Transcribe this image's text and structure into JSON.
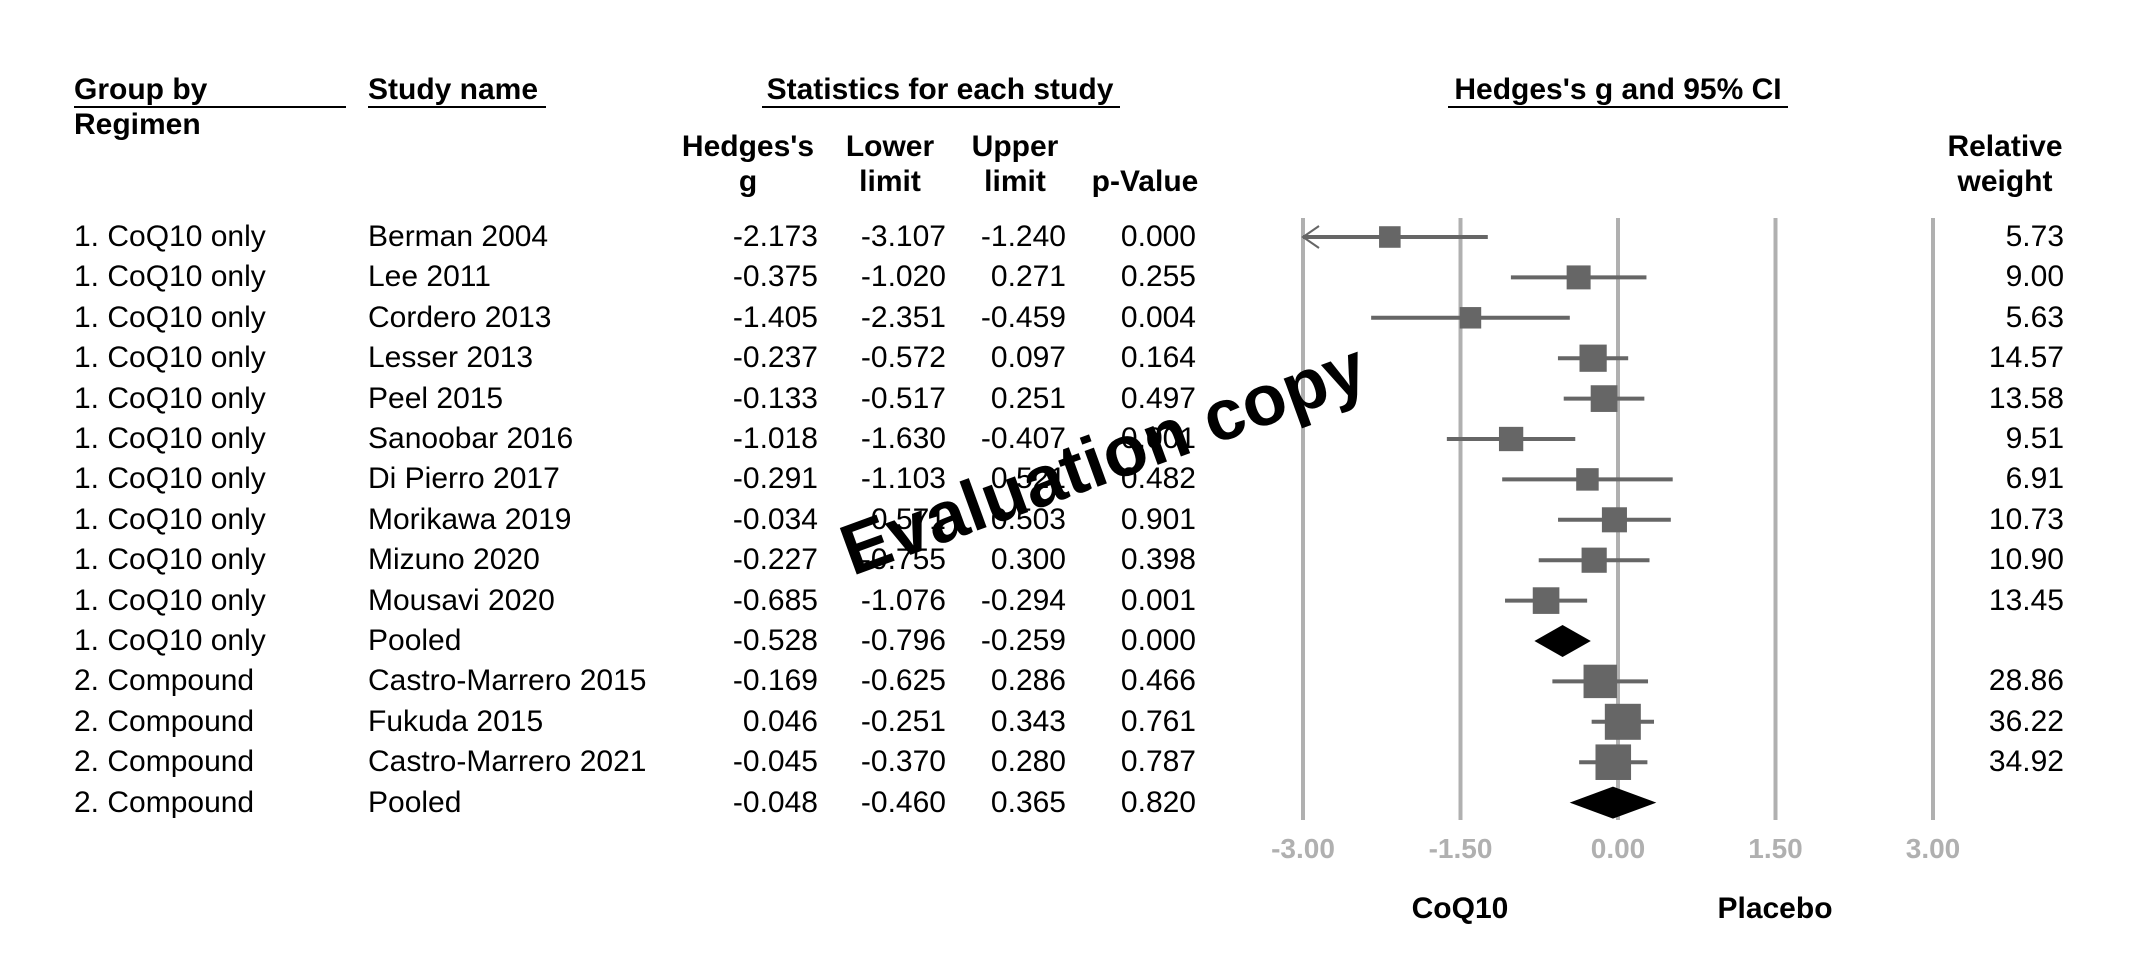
{
  "headers": {
    "group_line1": "Group by",
    "group_line2": "Regimen",
    "study": "Study name",
    "stats": "Statistics for each study",
    "plot": "Hedges's g and 95% CI",
    "g_line1": "Hedges's",
    "g_line2": "g",
    "lower_line1": "Lower",
    "lower_line2": "limit",
    "upper_line1": "Upper",
    "upper_line2": "limit",
    "p": "p-Value",
    "weight_line1": "Relative",
    "weight_line2": "weight"
  },
  "watermark": "Evaluation copy",
  "rows": [
    {
      "group": "1. CoQ10 only",
      "study": "Berman 2004",
      "g": "-2.173",
      "lower": "-3.107",
      "upper": "-1.240",
      "p": "0.000",
      "weight": "5.73"
    },
    {
      "group": "1. CoQ10 only",
      "study": "Lee 2011",
      "g": "-0.375",
      "lower": "-1.020",
      "upper": "0.271",
      "p": "0.255",
      "weight": "9.00"
    },
    {
      "group": "1. CoQ10 only",
      "study": "Cordero 2013",
      "g": "-1.405",
      "lower": "-2.351",
      "upper": "-0.459",
      "p": "0.004",
      "weight": "5.63"
    },
    {
      "group": "1. CoQ10 only",
      "study": "Lesser 2013",
      "g": "-0.237",
      "lower": "-0.572",
      "upper": "0.097",
      "p": "0.164",
      "weight": "14.57"
    },
    {
      "group": "1. CoQ10 only",
      "study": "Peel 2015",
      "g": "-0.133",
      "lower": "-0.517",
      "upper": "0.251",
      "p": "0.497",
      "weight": "13.58"
    },
    {
      "group": "1. CoQ10 only",
      "study": "Sanoobar 2016",
      "g": "-1.018",
      "lower": "-1.630",
      "upper": "-0.407",
      "p": "0.001",
      "weight": "9.51"
    },
    {
      "group": "1. CoQ10 only",
      "study": "Di Pierro 2017",
      "g": "-0.291",
      "lower": "-1.103",
      "upper": "0.521",
      "p": "0.482",
      "weight": "6.91"
    },
    {
      "group": "1. CoQ10 only",
      "study": "Morikawa 2019",
      "g": "-0.034",
      "lower": "-0.571",
      "upper": "0.503",
      "p": "0.901",
      "weight": "10.73"
    },
    {
      "group": "1. CoQ10 only",
      "study": "Mizuno 2020",
      "g": "-0.227",
      "lower": "-0.755",
      "upper": "0.300",
      "p": "0.398",
      "weight": "10.90"
    },
    {
      "group": "1. CoQ10 only",
      "study": "Mousavi 2020",
      "g": "-0.685",
      "lower": "-1.076",
      "upper": "-0.294",
      "p": "0.001",
      "weight": "13.45"
    },
    {
      "group": "1. CoQ10 only",
      "study": "Pooled",
      "g": "-0.528",
      "lower": "-0.796",
      "upper": "-0.259",
      "p": "0.000",
      "weight": "",
      "pooled": true
    },
    {
      "group": "2. Compound",
      "study": "Castro-Marrero 2015",
      "g": "-0.169",
      "lower": "-0.625",
      "upper": "0.286",
      "p": "0.466",
      "weight": "28.86"
    },
    {
      "group": "2. Compound",
      "study": "Fukuda 2015",
      "g": "0.046",
      "lower": "-0.251",
      "upper": "0.343",
      "p": "0.761",
      "weight": "36.22"
    },
    {
      "group": "2. Compound",
      "study": "Castro-Marrero 2021",
      "g": "-0.045",
      "lower": "-0.370",
      "upper": "0.280",
      "p": "0.787",
      "weight": "34.92"
    },
    {
      "group": "2. Compound",
      "study": "Pooled",
      "g": "-0.048",
      "lower": "-0.460",
      "upper": "0.365",
      "p": "0.820",
      "weight": "",
      "pooled": true
    }
  ],
  "chart_data": {
    "type": "forest",
    "xlabel_left": "CoQ10",
    "xlabel_right": "Placebo",
    "xlim": [
      -3,
      3
    ],
    "ticks": [
      -3,
      -1.5,
      0,
      1.5,
      3
    ],
    "tick_labels": [
      "-3.00",
      "-1.50",
      "0.00",
      "1.50",
      "3.00"
    ],
    "points": [
      {
        "study": "Berman 2004",
        "g": -2.173,
        "lower": -3.107,
        "upper": -1.24,
        "weight": 5.73
      },
      {
        "study": "Lee 2011",
        "g": -0.375,
        "lower": -1.02,
        "upper": 0.271,
        "weight": 9.0
      },
      {
        "study": "Cordero 2013",
        "g": -1.405,
        "lower": -2.351,
        "upper": -0.459,
        "weight": 5.63
      },
      {
        "study": "Lesser 2013",
        "g": -0.237,
        "lower": -0.572,
        "upper": 0.097,
        "weight": 14.57
      },
      {
        "study": "Peel 2015",
        "g": -0.133,
        "lower": -0.517,
        "upper": 0.251,
        "weight": 13.58
      },
      {
        "study": "Sanoobar 2016",
        "g": -1.018,
        "lower": -1.63,
        "upper": -0.407,
        "weight": 9.51
      },
      {
        "study": "Di Pierro 2017",
        "g": -0.291,
        "lower": -1.103,
        "upper": 0.521,
        "weight": 6.91
      },
      {
        "study": "Morikawa 2019",
        "g": -0.034,
        "lower": -0.571,
        "upper": 0.503,
        "weight": 10.73
      },
      {
        "study": "Mizuno 2020",
        "g": -0.227,
        "lower": -0.755,
        "upper": 0.3,
        "weight": 10.9
      },
      {
        "study": "Mousavi 2020",
        "g": -0.685,
        "lower": -1.076,
        "upper": -0.294,
        "weight": 13.45
      },
      {
        "study": "Pooled",
        "g": -0.528,
        "lower": -0.796,
        "upper": -0.259,
        "pooled": true
      },
      {
        "study": "Castro-Marrero 2015",
        "g": -0.169,
        "lower": -0.625,
        "upper": 0.286,
        "weight": 28.86
      },
      {
        "study": "Fukuda 2015",
        "g": 0.046,
        "lower": -0.251,
        "upper": 0.343,
        "weight": 36.22
      },
      {
        "study": "Castro-Marrero 2021",
        "g": -0.045,
        "lower": -0.37,
        "upper": 0.28,
        "weight": 34.92
      },
      {
        "study": "Pooled",
        "g": -0.048,
        "lower": -0.46,
        "upper": 0.365,
        "pooled": true
      }
    ]
  }
}
